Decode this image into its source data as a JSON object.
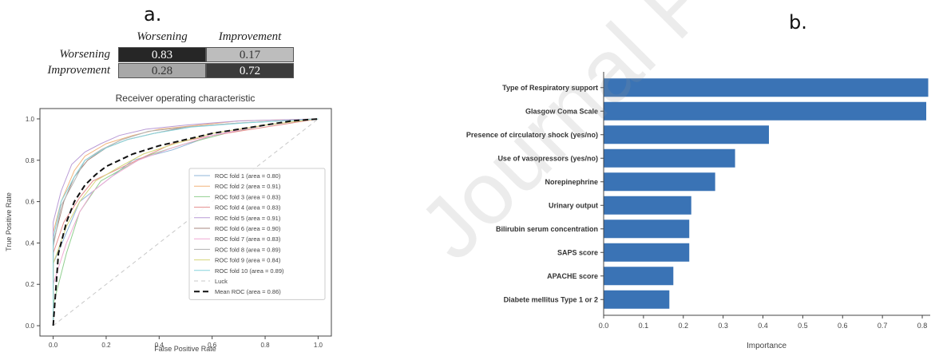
{
  "panels": {
    "a": "a.",
    "b": "b."
  },
  "confusion_matrix": {
    "col_labels": [
      "Worsening",
      "Improvement"
    ],
    "row_labels": [
      "Worsening",
      "Improvement"
    ],
    "cells": [
      [
        "0.83",
        "0.17"
      ],
      [
        "0.28",
        "0.72"
      ]
    ],
    "cell_colors": [
      [
        "#262626",
        "#bdbdbd"
      ],
      [
        "#a8a8a8",
        "#3c3c3c"
      ]
    ],
    "text_colors": [
      [
        "#ffffff",
        "#333333"
      ],
      [
        "#333333",
        "#ffffff"
      ]
    ]
  },
  "watermark": "Journal Pre-proof",
  "chart_data": [
    {
      "type": "line",
      "title": "Receiver operating characteristic",
      "xlabel": "False Positive Rate",
      "ylabel": "True Positive Rate",
      "xlim": [
        0.0,
        1.0
      ],
      "ylim": [
        0.0,
        1.0
      ],
      "xticks": [
        "0.0",
        "0.2",
        "0.4",
        "0.6",
        "0.8",
        "1.0"
      ],
      "yticks": [
        "0.0",
        "0.2",
        "0.4",
        "0.6",
        "0.8",
        "1.0"
      ],
      "legend_position": "lower-right",
      "series": [
        {
          "name": "ROC fold 1 (area = 0.80)",
          "color": "#8fb5d9",
          "x": [
            0,
            0,
            0.05,
            0.1,
            0.15,
            0.2,
            0.3,
            0.45,
            0.6,
            0.8,
            1
          ],
          "y": [
            0,
            0.3,
            0.45,
            0.6,
            0.65,
            0.7,
            0.8,
            0.85,
            0.92,
            0.97,
            1
          ]
        },
        {
          "name": "ROC fold 2 (area = 0.91)",
          "color": "#f2b47a",
          "x": [
            0,
            0,
            0.03,
            0.08,
            0.12,
            0.2,
            0.3,
            0.4,
            0.55,
            0.7,
            1
          ],
          "y": [
            0,
            0.45,
            0.6,
            0.75,
            0.82,
            0.88,
            0.92,
            0.95,
            0.97,
            0.99,
            1
          ]
        },
        {
          "name": "ROC fold 3 (area = 0.83)",
          "color": "#90cf8f",
          "x": [
            0,
            0,
            0.05,
            0.1,
            0.18,
            0.25,
            0.35,
            0.5,
            0.65,
            0.8,
            1
          ],
          "y": [
            0,
            0.1,
            0.35,
            0.55,
            0.7,
            0.75,
            0.82,
            0.88,
            0.93,
            0.97,
            1
          ]
        },
        {
          "name": "ROC fold 4 (area = 0.83)",
          "color": "#e58d8d",
          "x": [
            0,
            0,
            0.04,
            0.1,
            0.15,
            0.25,
            0.35,
            0.45,
            0.6,
            0.8,
            1
          ],
          "y": [
            0,
            0.35,
            0.5,
            0.62,
            0.7,
            0.76,
            0.82,
            0.88,
            0.92,
            0.96,
            1
          ]
        },
        {
          "name": "ROC fold 5 (area = 0.91)",
          "color": "#b99bd6",
          "x": [
            0,
            0,
            0.03,
            0.07,
            0.12,
            0.18,
            0.25,
            0.35,
            0.5,
            0.7,
            1
          ],
          "y": [
            0,
            0.5,
            0.65,
            0.78,
            0.84,
            0.88,
            0.92,
            0.95,
            0.97,
            0.99,
            1
          ]
        },
        {
          "name": "ROC fold 6 (area = 0.90)",
          "color": "#a98a80",
          "x": [
            0,
            0,
            0.04,
            0.08,
            0.13,
            0.2,
            0.28,
            0.38,
            0.5,
            0.7,
            1
          ],
          "y": [
            0,
            0.4,
            0.6,
            0.72,
            0.8,
            0.86,
            0.9,
            0.93,
            0.96,
            0.98,
            1
          ]
        },
        {
          "name": "ROC fold 7 (area = 0.83)",
          "color": "#f0a9d4",
          "x": [
            0,
            0,
            0.05,
            0.1,
            0.15,
            0.22,
            0.32,
            0.45,
            0.6,
            0.8,
            1
          ],
          "y": [
            0,
            0.2,
            0.4,
            0.55,
            0.65,
            0.72,
            0.8,
            0.86,
            0.92,
            0.97,
            1
          ]
        },
        {
          "name": "ROC fold 8 (area = 0.89)",
          "color": "#b0b0b0",
          "x": [
            0,
            0,
            0.03,
            0.08,
            0.12,
            0.18,
            0.26,
            0.36,
            0.5,
            0.7,
            1
          ],
          "y": [
            0,
            0.38,
            0.58,
            0.7,
            0.8,
            0.85,
            0.9,
            0.94,
            0.96,
            0.98,
            1
          ]
        },
        {
          "name": "ROC fold 9 (area = 0.84)",
          "color": "#d6d67a",
          "x": [
            0,
            0,
            0.05,
            0.1,
            0.16,
            0.24,
            0.34,
            0.46,
            0.6,
            0.8,
            1
          ],
          "y": [
            0,
            0.3,
            0.48,
            0.6,
            0.7,
            0.76,
            0.83,
            0.88,
            0.93,
            0.97,
            1
          ]
        },
        {
          "name": "ROC fold 10 (area = 0.89)",
          "color": "#86d4dc",
          "x": [
            0,
            0,
            0.03,
            0.08,
            0.12,
            0.2,
            0.28,
            0.38,
            0.52,
            0.72,
            1
          ],
          "y": [
            0,
            0.42,
            0.6,
            0.72,
            0.8,
            0.86,
            0.9,
            0.93,
            0.96,
            0.98,
            1
          ]
        },
        {
          "name": "Luck",
          "color": "#c8c8c8",
          "dash": "5,4",
          "x": [
            0,
            1
          ],
          "y": [
            0,
            1
          ]
        },
        {
          "name": "Mean ROC (area = 0.86)",
          "color": "#111111",
          "dash": "7,4",
          "x": [
            0,
            0.02,
            0.05,
            0.08,
            0.12,
            0.16,
            0.2,
            0.25,
            0.3,
            0.4,
            0.5,
            0.6,
            0.7,
            0.8,
            0.9,
            1
          ],
          "y": [
            0,
            0.35,
            0.5,
            0.6,
            0.68,
            0.73,
            0.77,
            0.8,
            0.83,
            0.87,
            0.9,
            0.93,
            0.95,
            0.97,
            0.99,
            1
          ]
        }
      ]
    },
    {
      "type": "bar",
      "orientation": "horizontal",
      "xlabel": "Importance",
      "xlim": [
        0.0,
        0.82
      ],
      "xticks": [
        "0.0",
        "0.1",
        "0.2",
        "0.3",
        "0.4",
        "0.5",
        "0.6",
        "0.7",
        "0.8"
      ],
      "bar_color": "#3a73b5",
      "categories": [
        "Type of Respiratory support",
        "Glasgow Coma Scale",
        "Presence of circulatory shock (yes/no)",
        "Use of vasopressors (yes/no)",
        "Norepinephrine",
        "Urinary output",
        "Bilirubin serum concentration",
        "SAPS score",
        "APACHE score",
        "Diabete mellitus Type 1 or 2"
      ],
      "values": [
        0.815,
        0.81,
        0.415,
        0.33,
        0.28,
        0.22,
        0.215,
        0.215,
        0.175,
        0.165
      ]
    }
  ]
}
